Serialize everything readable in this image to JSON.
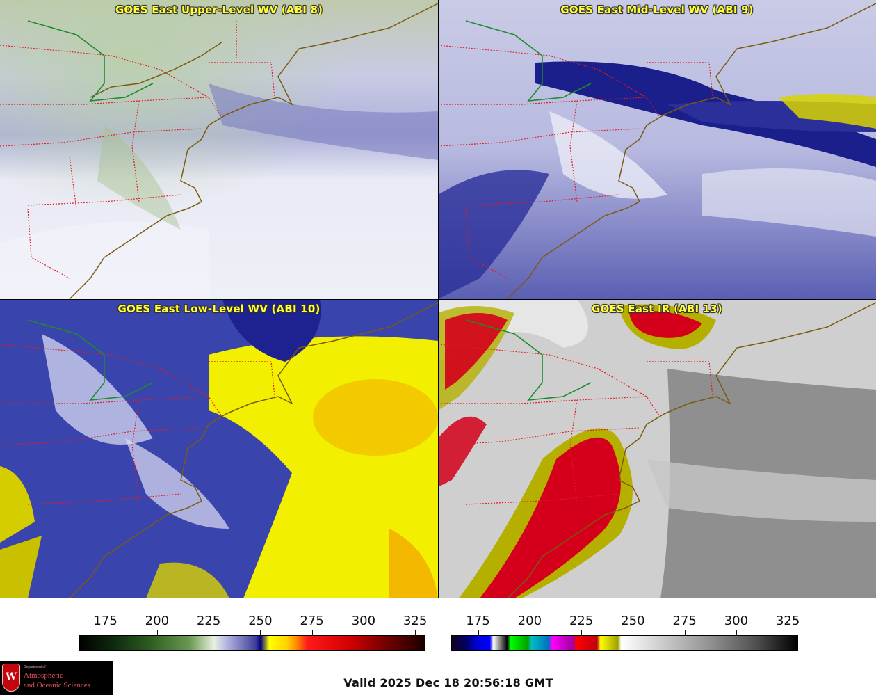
{
  "panels": [
    {
      "title": "GOES East Upper-Level WV (ABI 8)",
      "colors": [
        "#e4e6f2",
        "#7c7fc1"
      ]
    },
    {
      "title": "GOES East Mid-Level WV (ABI 9)",
      "colors": [
        "#d6d8ef",
        "#1a1f8c"
      ]
    },
    {
      "title": "GOES East Low-Level WV (ABI 10)",
      "colors": [
        "#2b36a8",
        "#f4f000"
      ]
    },
    {
      "title": "GOES East IR (ABI 13)",
      "colors": [
        "#9a9a9a",
        "#d4001b"
      ]
    }
  ],
  "colorbars": {
    "wv": {
      "ticks": [
        "175",
        "200",
        "225",
        "250",
        "275",
        "300",
        "325"
      ],
      "min": 162,
      "max": 330
    },
    "ir": {
      "ticks": [
        "175",
        "200",
        "225",
        "250",
        "275",
        "300",
        "325"
      ],
      "min": 162,
      "max": 330
    }
  },
  "logo": {
    "dept": "Department of",
    "line1": "Atmospheric",
    "line2": "and Oceanic Sciences"
  },
  "valid": "Valid 2025 Dec 18 20:56:18 GMT"
}
